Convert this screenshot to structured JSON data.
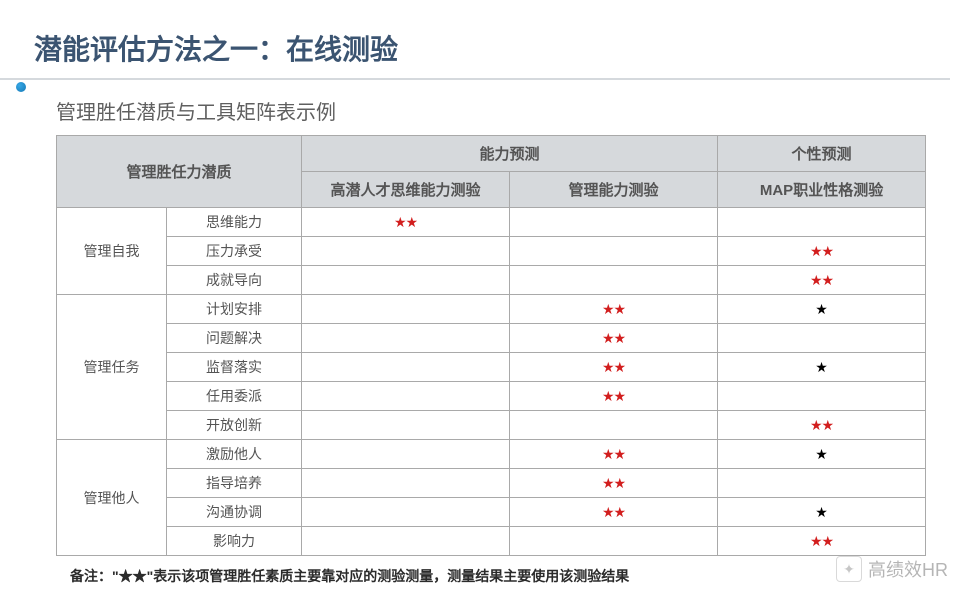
{
  "title": "潜能评估方法之一：在线测验",
  "subtitle": "管理胜任潜质与工具矩阵表示例",
  "headers": {
    "row1_col1": "管理胜任力潜质",
    "row1_col2": "能力预测",
    "row1_col3": "个性预测",
    "row2_a": "高潜人才思维能力测验",
    "row2_b": "管理能力测验",
    "row2_c": "MAP职业性格测验"
  },
  "groups": [
    {
      "name": "管理自我",
      "rows": [
        {
          "label": "思维能力",
          "cells": [
            "red2",
            "",
            ""
          ]
        },
        {
          "label": "压力承受",
          "cells": [
            "",
            "",
            "red2"
          ]
        },
        {
          "label": "成就导向",
          "cells": [
            "",
            "",
            "red2"
          ]
        }
      ]
    },
    {
      "name": "管理任务",
      "rows": [
        {
          "label": "计划安排",
          "cells": [
            "",
            "red2",
            "blk1"
          ]
        },
        {
          "label": "问题解决",
          "cells": [
            "",
            "red2",
            ""
          ]
        },
        {
          "label": "监督落实",
          "cells": [
            "",
            "red2",
            "blk1"
          ]
        },
        {
          "label": "任用委派",
          "cells": [
            "",
            "red2",
            ""
          ]
        },
        {
          "label": "开放创新",
          "cells": [
            "",
            "",
            "red2"
          ]
        }
      ]
    },
    {
      "name": "管理他人",
      "rows": [
        {
          "label": "激励他人",
          "cells": [
            "",
            "red2",
            "blk1"
          ]
        },
        {
          "label": "指导培养",
          "cells": [
            "",
            "red2",
            ""
          ]
        },
        {
          "label": "沟通协调",
          "cells": [
            "",
            "red2",
            "blk1"
          ]
        },
        {
          "label": "影响力",
          "cells": [
            "",
            "",
            "red2"
          ]
        }
      ]
    }
  ],
  "symbols": {
    "red2": "★★",
    "blk1": "★"
  },
  "footnote": "备注：\"★★\"表示该项管理胜任素质主要靠对应的测验测量，测量结果主要使用该测验结果",
  "watermark": "高绩效HR"
}
